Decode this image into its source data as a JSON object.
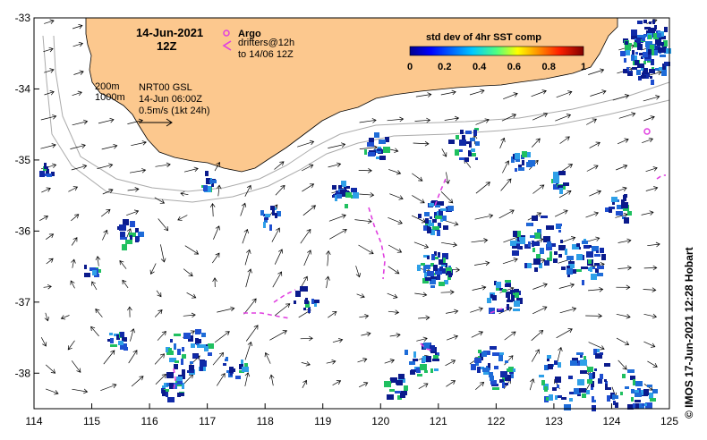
{
  "title": {
    "date": "14-Jun-2021",
    "hour": "12Z"
  },
  "legend": {
    "argo_label": "Argo",
    "argo_color": "#e040e0",
    "drifters_label_line1": "drifters@12h",
    "drifters_label_line2": "to 14/06 12Z",
    "drifter_color": "#e040e0"
  },
  "colorbar": {
    "title": "std dev of 4hr SST comp",
    "ticks": [
      "0",
      "0.2",
      "0.4",
      "0.6",
      "0.8",
      "1"
    ],
    "range": [
      0,
      1
    ]
  },
  "info": {
    "isobath1": "200m",
    "isobath2": "1000m",
    "product": "NRT00 GSL",
    "time": "14-Jun 06:00Z",
    "scale": "0.5m/s (1kt 24h)"
  },
  "axes": {
    "lon_ticks": [
      "114",
      "115",
      "116",
      "117",
      "118",
      "119",
      "120",
      "121",
      "122",
      "123",
      "124",
      "125"
    ],
    "lat_ticks": [
      "-33",
      "-34",
      "-35",
      "-36",
      "-37",
      "-38"
    ],
    "lon_range": [
      114,
      125
    ],
    "lat_range": [
      -38.5,
      -33
    ]
  },
  "credit": "© IMOS 17-Jun-2021 12:28 Hobart",
  "colors": {
    "land": "#fcc88e",
    "isobath": "#aaaaaa",
    "sst_low": "#0a1a8c",
    "sst_mid": "#1e6cd8"
  }
}
